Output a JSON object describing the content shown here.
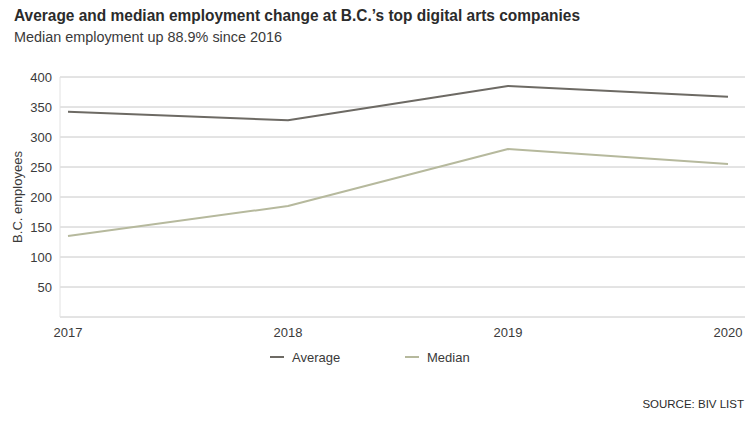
{
  "chart_data": {
    "type": "line",
    "title": "Average and median employment change at B.C.’s top digital arts companies",
    "subtitle": "Median employment up 88.9% since 2016",
    "y_label": "B.C. employees",
    "source": "SOURCE: BIV LIST",
    "categories": [
      "2017",
      "2018",
      "2019",
      "2020"
    ],
    "series": [
      {
        "name": "Average",
        "color": "#6d6a64",
        "values": [
          342,
          328,
          385,
          367
        ]
      },
      {
        "name": "Median",
        "color": "#b6b99d",
        "values": [
          135,
          185,
          280,
          255
        ]
      }
    ],
    "ylim": [
      0,
      400
    ],
    "yticks": [
      50,
      100,
      150,
      200,
      250,
      300,
      350,
      400
    ],
    "grid": true,
    "legend": "bottom"
  }
}
